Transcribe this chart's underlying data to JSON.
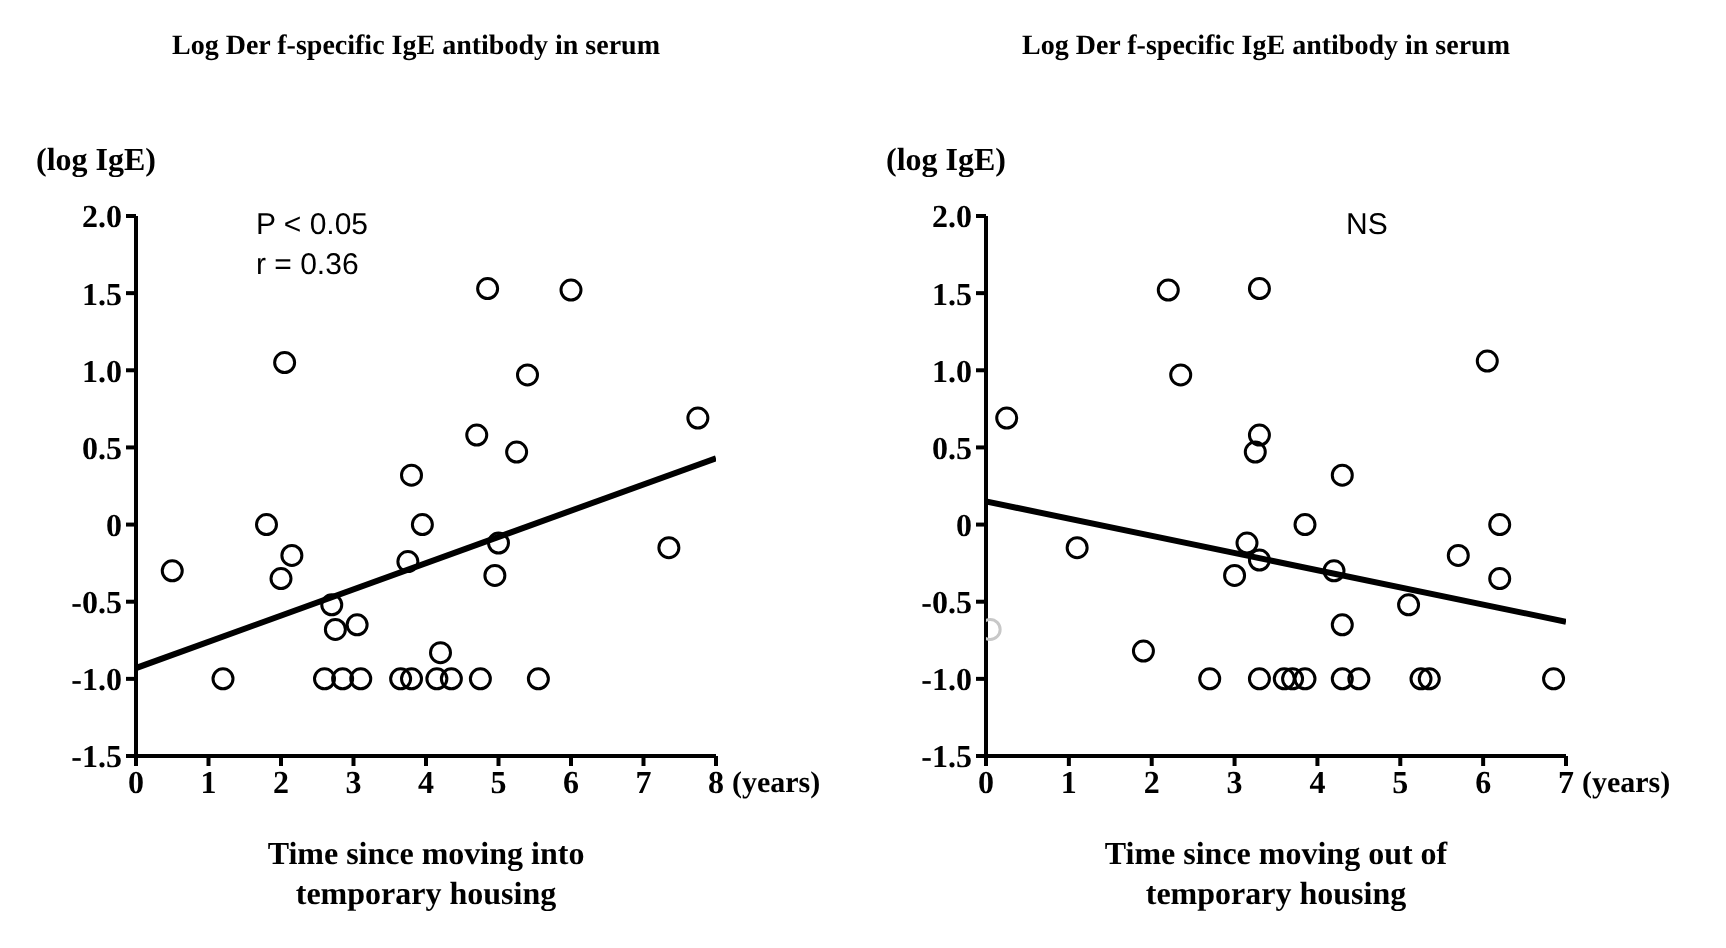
{
  "chart_data": [
    {
      "type": "scatter",
      "title": "Log Der f-specific IgE antibody in serum",
      "ylabel": "(log IgE)",
      "xlabel": "Time since moving into temporary housing",
      "annotations": [
        "(years)",
        "P < 0.05",
        "r = 0.36"
      ],
      "xlim": [
        0,
        8
      ],
      "xticks": [
        0,
        1,
        2,
        3,
        4,
        5,
        6,
        7,
        8
      ],
      "ylim": [
        -1.5,
        2.0
      ],
      "yticks": [
        {
          "value": -1.5,
          "label": "-1.5"
        },
        {
          "value": -1.0,
          "label": "-1.0"
        },
        {
          "value": -0.5,
          "label": "-0.5"
        },
        {
          "value": 0,
          "label": "0"
        },
        {
          "value": 0.5,
          "label": "0.5"
        },
        {
          "value": 1.0,
          "label": "1.0"
        },
        {
          "value": 1.5,
          "label": "1.5"
        },
        {
          "value": 2.0,
          "label": "2.0"
        }
      ],
      "grid": false,
      "legend": false,
      "series": [
        {
          "marker": "circle",
          "color": "#000000",
          "x": [
            0.5,
            1.2,
            1.8,
            2.0,
            2.05,
            2.15,
            2.6,
            2.7,
            2.75,
            2.85,
            3.05,
            3.1,
            3.65,
            3.8,
            3.8,
            3.75,
            3.95,
            4.15,
            4.2,
            4.35,
            4.75,
            4.7,
            4.85,
            4.95,
            5.0,
            5.25,
            5.4,
            5.55,
            6.0,
            7.35,
            7.75
          ],
          "values": [
            -0.3,
            -1.0,
            0,
            -0.35,
            1.05,
            -0.2,
            -1.0,
            -0.52,
            -0.68,
            -1.0,
            -0.65,
            -1.0,
            -1.0,
            -1.0,
            0.32,
            -0.24,
            0,
            -1.0,
            -0.83,
            -1.0,
            -1.0,
            0.58,
            1.53,
            -0.33,
            -0.12,
            0.47,
            0.97,
            -1.0,
            1.52,
            -0.15,
            0.69
          ]
        },
        {
          "type": "line",
          "color": "#000000",
          "x": [
            0,
            8
          ],
          "values": [
            -0.93,
            0.43
          ]
        }
      ]
    },
    {
      "type": "scatter",
      "title": "Log Der f-specific IgE antibody in serum",
      "ylabel": "(log IgE)",
      "xlabel": "Time since moving out of temporary housing",
      "annotations": [
        "(years)",
        "NS"
      ],
      "xlim": [
        0,
        7
      ],
      "xticks": [
        0,
        1,
        2,
        3,
        4,
        5,
        6,
        7
      ],
      "ylim": [
        -1.5,
        2.0
      ],
      "yticks": [
        {
          "value": -1.5,
          "label": "-1.5"
        },
        {
          "value": -1.0,
          "label": "-1.0"
        },
        {
          "value": -0.5,
          "label": "-0.5"
        },
        {
          "value": 0,
          "label": "0"
        },
        {
          "value": 0.5,
          "label": "0.5"
        },
        {
          "value": 1.0,
          "label": "1.0"
        },
        {
          "value": 1.5,
          "label": "1.5"
        },
        {
          "value": 2.0,
          "label": "2.0"
        }
      ],
      "grid": false,
      "legend": false,
      "series": [
        {
          "marker": "circle",
          "color": "#000000",
          "x": [
            0.25,
            1.1,
            1.9,
            2.2,
            2.35,
            2.7,
            3.0,
            3.15,
            3.25,
            3.3,
            3.3,
            3.3,
            3.3,
            3.6,
            3.7,
            3.85,
            3.85,
            4.2,
            4.3,
            4.3,
            4.3,
            4.5,
            5.1,
            5.25,
            5.35,
            5.7,
            6.05,
            6.2,
            6.2,
            6.85
          ],
          "values": [
            0.69,
            -0.15,
            -0.82,
            1.52,
            0.97,
            -1.0,
            -0.33,
            -0.12,
            0.47,
            0.58,
            1.53,
            -0.23,
            -1.0,
            -1.0,
            -1.0,
            -1.0,
            0,
            -0.3,
            0.32,
            -0.65,
            -1.0,
            -1.0,
            -0.52,
            -1.0,
            -1.0,
            -0.2,
            1.06,
            0,
            -0.35,
            -1.0
          ]
        },
        {
          "marker": "circle",
          "color": "#c8c8c8",
          "x": [
            0.05
          ],
          "values": [
            -0.68
          ]
        },
        {
          "type": "line",
          "color": "#000000",
          "x": [
            0,
            7
          ],
          "values": [
            0.15,
            -0.63
          ]
        }
      ]
    }
  ]
}
